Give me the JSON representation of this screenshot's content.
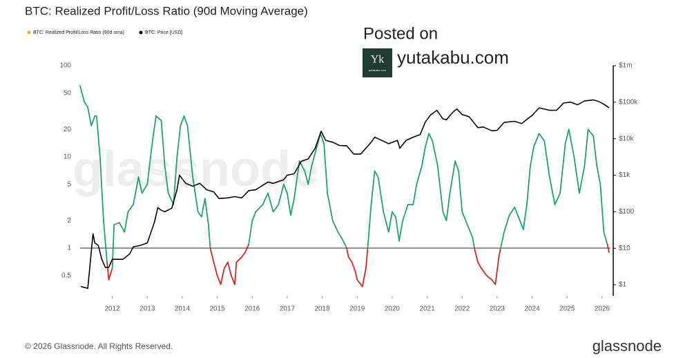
{
  "chart_data": {
    "type": "line",
    "title": "BTC: Realized Profit/Loss Ratio (90d Moving Average)",
    "log_scale": true,
    "threshold": 1,
    "xlim": [
      2011.08,
      2026.24
    ],
    "xticks": [
      2012,
      2013,
      2014,
      2015,
      2016,
      2017,
      2018,
      2019,
      2020,
      2021,
      2022,
      2023,
      2024,
      2025,
      2026
    ],
    "ylim": [
      0.3,
      100
    ],
    "yticks": [
      0.5,
      1,
      2,
      5,
      10,
      20,
      50,
      100
    ],
    "y2lim": [
      0.5,
      1000000
    ],
    "y2ticks": [
      {
        "value": 1,
        "label": "$1"
      },
      {
        "value": 10,
        "label": "$10"
      },
      {
        "value": 100,
        "label": "$100"
      },
      {
        "value": 1000,
        "label": "$1k"
      },
      {
        "value": 10000,
        "label": "$10k"
      },
      {
        "value": 100000,
        "label": "$100k"
      },
      {
        "value": 1000000,
        "label": "$1m"
      }
    ],
    "series": [
      {
        "name": "BTC: Realized Profit/Loss Ratio (90d sma)",
        "legend_color": "#f5a623",
        "color": "#1aa56a",
        "below_color": "#e0201b",
        "x": [
          2011.08,
          2011.2,
          2011.3,
          2011.4,
          2011.5,
          2011.55,
          2011.65,
          2011.75,
          2011.85,
          2011.9,
          2012.0,
          2012.05,
          2012.2,
          2012.35,
          2012.45,
          2012.6,
          2012.75,
          2012.85,
          2013.0,
          2013.15,
          2013.25,
          2013.4,
          2013.5,
          2013.6,
          2013.75,
          2013.85,
          2013.95,
          2014.05,
          2014.15,
          2014.3,
          2014.45,
          2014.55,
          2014.65,
          2014.75,
          2014.8,
          2014.9,
          2015.0,
          2015.1,
          2015.2,
          2015.3,
          2015.4,
          2015.5,
          2015.55,
          2015.7,
          2015.8,
          2015.9,
          2016.0,
          2016.1,
          2016.3,
          2016.45,
          2016.6,
          2016.75,
          2016.9,
          2017.0,
          2017.1,
          2017.2,
          2017.35,
          2017.5,
          2017.6,
          2017.7,
          2017.85,
          2017.95,
          2018.05,
          2018.15,
          2018.3,
          2018.45,
          2018.55,
          2018.65,
          2018.7,
          2018.75,
          2018.85,
          2018.95,
          2019.0,
          2019.15,
          2019.25,
          2019.3,
          2019.4,
          2019.5,
          2019.6,
          2019.75,
          2019.9,
          2020.0,
          2020.1,
          2020.2,
          2020.3,
          2020.45,
          2020.6,
          2020.7,
          2020.85,
          2020.95,
          2021.05,
          2021.15,
          2021.3,
          2021.45,
          2021.55,
          2021.65,
          2021.8,
          2021.9,
          2022.0,
          2022.15,
          2022.3,
          2022.35,
          2022.45,
          2022.55,
          2022.7,
          2022.85,
          2022.95,
          2023.05,
          2023.1,
          2023.2,
          2023.35,
          2023.5,
          2023.65,
          2023.75,
          2023.85,
          2023.95,
          2024.05,
          2024.2,
          2024.35,
          2024.5,
          2024.65,
          2024.8,
          2024.95,
          2025.05,
          2025.2,
          2025.35,
          2025.5,
          2025.6,
          2025.75,
          2025.85,
          2025.95,
          2026.05,
          2026.15,
          2026.2
        ],
        "values": [
          60,
          40,
          35,
          22,
          28,
          28,
          10,
          2,
          0.7,
          0.45,
          0.6,
          1.8,
          1.9,
          1.5,
          2.5,
          3,
          6,
          4,
          5,
          15,
          28,
          25,
          8,
          4,
          3,
          10,
          22,
          28,
          22,
          6,
          2.5,
          2.2,
          3.5,
          1.8,
          1,
          0.7,
          0.5,
          0.4,
          0.6,
          0.7,
          0.5,
          0.4,
          0.7,
          0.8,
          0.9,
          1.1,
          2,
          2.5,
          3,
          4,
          2.5,
          3,
          5,
          4,
          2.3,
          3.5,
          9,
          7,
          5,
          8,
          13,
          18,
          14,
          4,
          2,
          1.5,
          1.3,
          1.1,
          1,
          0.8,
          0.7,
          0.55,
          0.45,
          0.38,
          0.6,
          1,
          3,
          7,
          6,
          2.5,
          1.5,
          2.5,
          2.2,
          1.2,
          2,
          3,
          3,
          5,
          8,
          13,
          18,
          15,
          8,
          2.5,
          2,
          4,
          9,
          7,
          2.5,
          1.8,
          1.3,
          1,
          0.7,
          0.6,
          0.5,
          0.45,
          0.4,
          0.8,
          1,
          1.5,
          2.3,
          2.8,
          2,
          1.6,
          3,
          8,
          13,
          18,
          15,
          6,
          3,
          4,
          14,
          20,
          10,
          4,
          8,
          20,
          17,
          8,
          5,
          1.5,
          1.1,
          0.9
        ]
      },
      {
        "name": "BTC: Price [USD]",
        "color": "#000000",
        "axis": "y2",
        "x": [
          2011.1,
          2011.3,
          2011.4,
          2011.45,
          2011.5,
          2011.6,
          2011.7,
          2011.8,
          2011.9,
          2012.0,
          2012.1,
          2012.3,
          2012.5,
          2012.6,
          2012.8,
          2013.0,
          2013.2,
          2013.3,
          2013.4,
          2013.5,
          2013.7,
          2013.85,
          2013.92,
          2014.0,
          2014.1,
          2014.3,
          2014.5,
          2014.7,
          2014.9,
          2015.05,
          2015.3,
          2015.5,
          2015.7,
          2015.9,
          2016.1,
          2016.45,
          2016.6,
          2016.9,
          2017.0,
          2017.2,
          2017.4,
          2017.6,
          2017.8,
          2017.97,
          2018.1,
          2018.3,
          2018.5,
          2018.7,
          2018.9,
          2019.1,
          2019.4,
          2019.5,
          2019.7,
          2019.9,
          2020.15,
          2020.22,
          2020.4,
          2020.6,
          2020.8,
          2020.95,
          2021.1,
          2021.28,
          2021.45,
          2021.55,
          2021.75,
          2021.85,
          2022.0,
          2022.2,
          2022.45,
          2022.6,
          2022.85,
          2023.0,
          2023.2,
          2023.5,
          2023.7,
          2023.9,
          2024.0,
          2024.2,
          2024.5,
          2024.7,
          2024.9,
          2025.1,
          2025.3,
          2025.5,
          2025.75,
          2025.9,
          2026.05,
          2026.2
        ],
        "values": [
          0.9,
          0.8,
          8,
          25,
          14,
          12,
          5,
          3,
          3,
          5,
          5,
          5,
          7,
          11,
          12,
          14,
          50,
          130,
          110,
          100,
          125,
          400,
          1000,
          800,
          600,
          500,
          600,
          400,
          350,
          230,
          240,
          260,
          240,
          380,
          400,
          650,
          600,
          750,
          1000,
          1100,
          2400,
          2800,
          5500,
          16000,
          9000,
          8000,
          6500,
          6400,
          3800,
          3800,
          8000,
          11000,
          9000,
          7300,
          9000,
          5500,
          9000,
          11000,
          13000,
          29000,
          45000,
          60000,
          35000,
          33000,
          55000,
          65000,
          46000,
          40000,
          20000,
          21000,
          16500,
          17000,
          28000,
          30000,
          26000,
          37000,
          43000,
          70000,
          60000,
          60000,
          95000,
          100000,
          85000,
          108000,
          115000,
          105000,
          88000,
          70000
        ]
      }
    ]
  },
  "watermark": "glassnode",
  "overlay": {
    "posted_on": "Posted on",
    "logo_letters": "Yk",
    "logo_caption": "yutakabu.com",
    "site": "yutakabu.com"
  },
  "footer": {
    "copyright": "© 2026 Glassnode. All Rights Reserved.",
    "brand": "glassnode"
  }
}
